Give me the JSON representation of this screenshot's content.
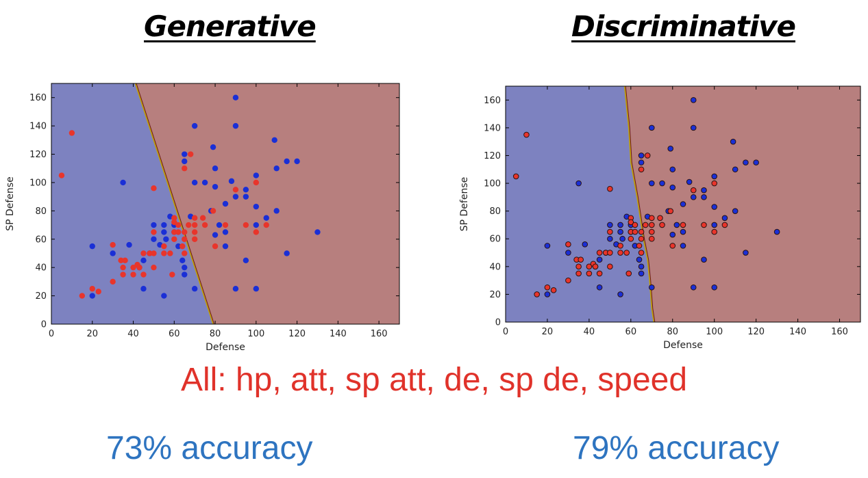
{
  "titles": {
    "left": "Generative",
    "right": "Discriminative"
  },
  "features_text": "All: hp, att, sp att, de, sp de, speed",
  "accuracy": {
    "left": "73% accuracy",
    "right": "79% accuracy"
  },
  "colors": {
    "region_class1": "#7d82c0",
    "region_class2": "#b77f7e",
    "points_class1": "#1a2fd6",
    "points_class2": "#e8352b",
    "boundary": "#c0a000"
  },
  "chart_data": [
    {
      "type": "scatter",
      "title": "",
      "xlabel": "Defense",
      "ylabel": "SP Defense",
      "xlim": [
        0,
        170
      ],
      "ylim": [
        0,
        170
      ],
      "xticks": [
        0,
        20,
        40,
        60,
        80,
        100,
        120,
        140,
        160
      ],
      "yticks": [
        0,
        20,
        40,
        60,
        80,
        100,
        120,
        140,
        160
      ],
      "decision_boundary": [
        [
          41,
          170
        ],
        [
          79,
          0
        ]
      ],
      "series": [
        {
          "color": "#1a2fd6",
          "points": [
            [
              20,
              55
            ],
            [
              20,
              20
            ],
            [
              30,
              50
            ],
            [
              35,
              100
            ],
            [
              38,
              56
            ],
            [
              43,
              40
            ],
            [
              45,
              25
            ],
            [
              45,
              45
            ],
            [
              48,
              50
            ],
            [
              50,
              70
            ],
            [
              50,
              60
            ],
            [
              53,
              56
            ],
            [
              55,
              70
            ],
            [
              55,
              65
            ],
            [
              55,
              20
            ],
            [
              56,
              60
            ],
            [
              58,
              76
            ],
            [
              60,
              70
            ],
            [
              60,
              65
            ],
            [
              62,
              55
            ],
            [
              64,
              45
            ],
            [
              65,
              120
            ],
            [
              65,
              40
            ],
            [
              65,
              35
            ],
            [
              65,
              115
            ],
            [
              68,
              76
            ],
            [
              70,
              140
            ],
            [
              70,
              100
            ],
            [
              70,
              25
            ],
            [
              75,
              100
            ],
            [
              78,
              80
            ],
            [
              79,
              125
            ],
            [
              80,
              110
            ],
            [
              80,
              97
            ],
            [
              80,
              63
            ],
            [
              82,
              70
            ],
            [
              85,
              65
            ],
            [
              85,
              55
            ],
            [
              85,
              85
            ],
            [
              88,
              101
            ],
            [
              90,
              160
            ],
            [
              90,
              140
            ],
            [
              90,
              90
            ],
            [
              90,
              25
            ],
            [
              95,
              95
            ],
            [
              95,
              90
            ],
            [
              95,
              45
            ],
            [
              100,
              105
            ],
            [
              100,
              83
            ],
            [
              100,
              70
            ],
            [
              100,
              25
            ],
            [
              105,
              75
            ],
            [
              109,
              130
            ],
            [
              110,
              80
            ],
            [
              110,
              110
            ],
            [
              115,
              50
            ],
            [
              115,
              115
            ],
            [
              120,
              115
            ],
            [
              130,
              65
            ]
          ]
        },
        {
          "color": "#e8352b",
          "points": [
            [
              5,
              105
            ],
            [
              10,
              135
            ],
            [
              15,
              20
            ],
            [
              20,
              25
            ],
            [
              23,
              23
            ],
            [
              30,
              56
            ],
            [
              30,
              30
            ],
            [
              34,
              45
            ],
            [
              35,
              35
            ],
            [
              35,
              40
            ],
            [
              36,
              45
            ],
            [
              40,
              35
            ],
            [
              40,
              40
            ],
            [
              42,
              42
            ],
            [
              43,
              40
            ],
            [
              45,
              50
            ],
            [
              45,
              35
            ],
            [
              48,
              50
            ],
            [
              50,
              96
            ],
            [
              50,
              65
            ],
            [
              50,
              50
            ],
            [
              50,
              40
            ],
            [
              55,
              55
            ],
            [
              55,
              50
            ],
            [
              58,
              50
            ],
            [
              59,
              35
            ],
            [
              60,
              75
            ],
            [
              60,
              72
            ],
            [
              60,
              65
            ],
            [
              60,
              60
            ],
            [
              62,
              70
            ],
            [
              62,
              65
            ],
            [
              64,
              55
            ],
            [
              65,
              110
            ],
            [
              65,
              65
            ],
            [
              65,
              60
            ],
            [
              65,
              50
            ],
            [
              67,
              70
            ],
            [
              68,
              120
            ],
            [
              70,
              75
            ],
            [
              70,
              70
            ],
            [
              70,
              65
            ],
            [
              70,
              60
            ],
            [
              74,
              75
            ],
            [
              75,
              70
            ],
            [
              79,
              80
            ],
            [
              80,
              55
            ],
            [
              85,
              70
            ],
            [
              90,
              95
            ],
            [
              95,
              70
            ],
            [
              100,
              100
            ],
            [
              100,
              65
            ],
            [
              105,
              70
            ]
          ]
        }
      ]
    },
    {
      "type": "scatter",
      "title": "",
      "xlabel": "Defense",
      "ylabel": "SP Defense",
      "xlim": [
        0,
        170
      ],
      "ylim": [
        0,
        170
      ],
      "xticks": [
        0,
        20,
        40,
        60,
        80,
        100,
        120,
        140,
        160
      ],
      "yticks": [
        0,
        20,
        40,
        60,
        80,
        100,
        120,
        140,
        160
      ],
      "decision_boundary": [
        [
          57,
          170
        ],
        [
          59,
          140
        ],
        [
          60,
          115
        ],
        [
          63,
          90
        ],
        [
          64,
          80
        ],
        [
          65,
          70
        ],
        [
          66,
          60
        ],
        [
          68,
          45
        ],
        [
          69,
          30
        ],
        [
          70,
          10
        ],
        [
          71,
          0
        ]
      ],
      "series": [
        {
          "color": "#1a2fd6",
          "points": [
            [
              20,
              55
            ],
            [
              20,
              20
            ],
            [
              30,
              50
            ],
            [
              35,
              100
            ],
            [
              38,
              56
            ],
            [
              43,
              40
            ],
            [
              45,
              25
            ],
            [
              45,
              45
            ],
            [
              48,
              50
            ],
            [
              50,
              70
            ],
            [
              50,
              60
            ],
            [
              53,
              56
            ],
            [
              55,
              70
            ],
            [
              55,
              65
            ],
            [
              55,
              20
            ],
            [
              56,
              60
            ],
            [
              58,
              76
            ],
            [
              60,
              70
            ],
            [
              60,
              65
            ],
            [
              62,
              55
            ],
            [
              64,
              45
            ],
            [
              65,
              120
            ],
            [
              65,
              40
            ],
            [
              65,
              35
            ],
            [
              65,
              115
            ],
            [
              68,
              76
            ],
            [
              70,
              140
            ],
            [
              70,
              100
            ],
            [
              70,
              25
            ],
            [
              75,
              100
            ],
            [
              78,
              80
            ],
            [
              79,
              125
            ],
            [
              80,
              110
            ],
            [
              80,
              97
            ],
            [
              80,
              63
            ],
            [
              82,
              70
            ],
            [
              85,
              65
            ],
            [
              85,
              55
            ],
            [
              85,
              85
            ],
            [
              88,
              101
            ],
            [
              90,
              160
            ],
            [
              90,
              140
            ],
            [
              90,
              90
            ],
            [
              90,
              25
            ],
            [
              95,
              95
            ],
            [
              95,
              90
            ],
            [
              95,
              45
            ],
            [
              100,
              105
            ],
            [
              100,
              83
            ],
            [
              100,
              70
            ],
            [
              100,
              25
            ],
            [
              105,
              75
            ],
            [
              109,
              130
            ],
            [
              110,
              80
            ],
            [
              110,
              110
            ],
            [
              115,
              50
            ],
            [
              115,
              115
            ],
            [
              120,
              115
            ],
            [
              130,
              65
            ]
          ]
        },
        {
          "color": "#e8352b",
          "points": [
            [
              5,
              105
            ],
            [
              10,
              135
            ],
            [
              15,
              20
            ],
            [
              20,
              25
            ],
            [
              23,
              23
            ],
            [
              30,
              56
            ],
            [
              30,
              30
            ],
            [
              34,
              45
            ],
            [
              35,
              35
            ],
            [
              35,
              40
            ],
            [
              36,
              45
            ],
            [
              40,
              35
            ],
            [
              40,
              40
            ],
            [
              42,
              42
            ],
            [
              43,
              40
            ],
            [
              45,
              50
            ],
            [
              45,
              35
            ],
            [
              48,
              50
            ],
            [
              50,
              96
            ],
            [
              50,
              65
            ],
            [
              50,
              50
            ],
            [
              50,
              40
            ],
            [
              55,
              55
            ],
            [
              55,
              50
            ],
            [
              58,
              50
            ],
            [
              59,
              35
            ],
            [
              60,
              75
            ],
            [
              60,
              72
            ],
            [
              60,
              65
            ],
            [
              60,
              60
            ],
            [
              62,
              70
            ],
            [
              62,
              65
            ],
            [
              64,
              55
            ],
            [
              65,
              110
            ],
            [
              65,
              65
            ],
            [
              65,
              60
            ],
            [
              65,
              50
            ],
            [
              67,
              70
            ],
            [
              68,
              120
            ],
            [
              70,
              75
            ],
            [
              70,
              70
            ],
            [
              70,
              65
            ],
            [
              70,
              60
            ],
            [
              74,
              75
            ],
            [
              75,
              70
            ],
            [
              79,
              80
            ],
            [
              80,
              55
            ],
            [
              85,
              70
            ],
            [
              90,
              95
            ],
            [
              95,
              70
            ],
            [
              100,
              100
            ],
            [
              100,
              65
            ],
            [
              105,
              70
            ]
          ]
        }
      ]
    }
  ]
}
